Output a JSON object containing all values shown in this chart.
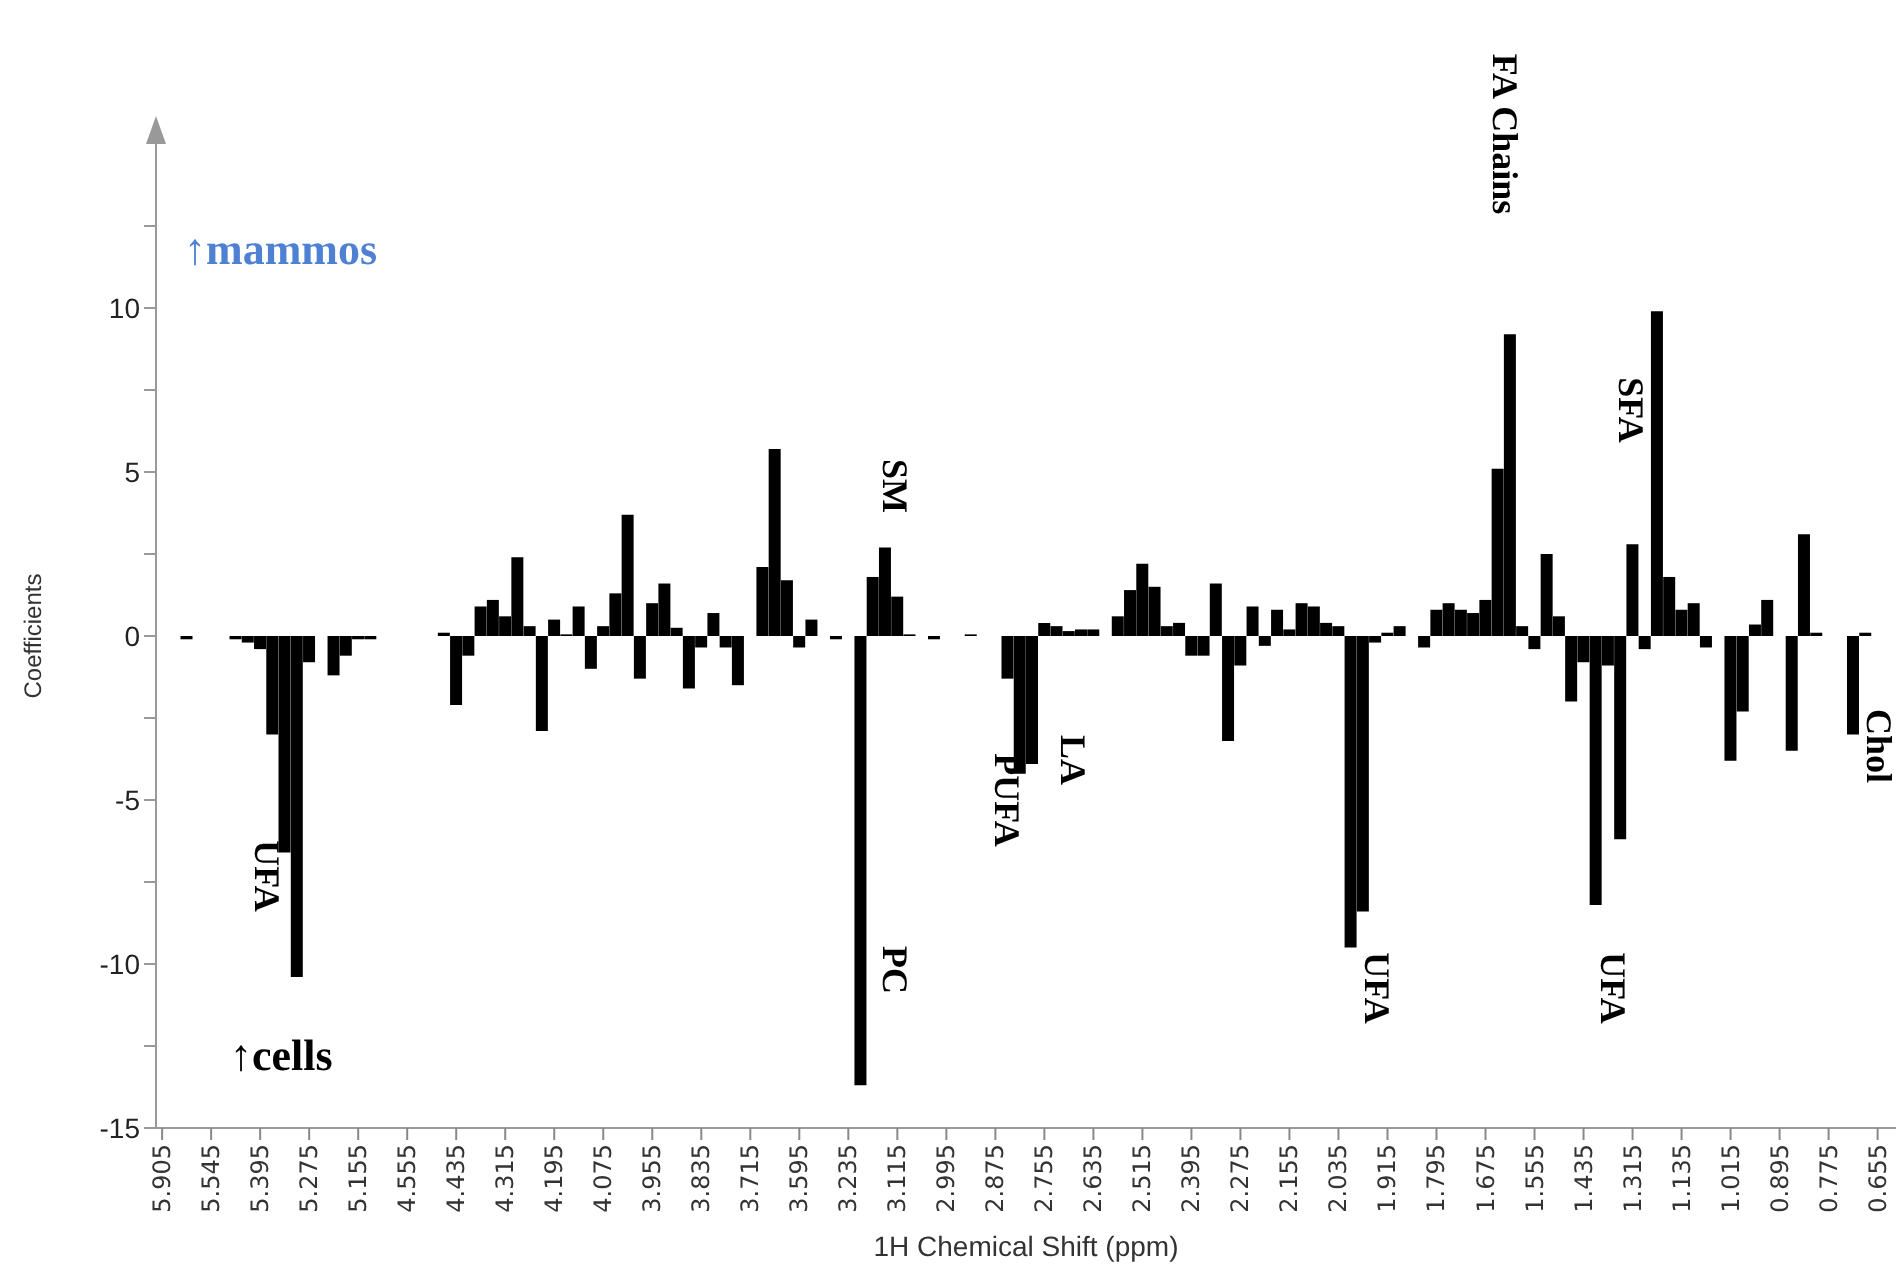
{
  "chart_data": {
    "type": "bar",
    "xlabel": "1H Chemical Shift (ppm)",
    "ylabel": "Coefficients",
    "color": "#000000",
    "categories": [
      "5.905",
      null,
      null,
      null,
      "5.545",
      null,
      null,
      null,
      "5.395",
      null,
      null,
      null,
      "5.275",
      null,
      null,
      null,
      "5.155",
      null,
      null,
      null,
      "4.555",
      null,
      null,
      null,
      "4.435",
      null,
      null,
      null,
      "4.315",
      null,
      null,
      null,
      "4.195",
      null,
      null,
      null,
      "4.075",
      null,
      null,
      null,
      "3.955",
      null,
      null,
      null,
      "3.835",
      null,
      null,
      null,
      "3.715",
      null,
      null,
      null,
      "3.595",
      null,
      null,
      null,
      "3.235",
      null,
      null,
      null,
      "3.115",
      null,
      null,
      null,
      "2.995",
      null,
      null,
      null,
      "2.875",
      null,
      null,
      null,
      "2.755",
      null,
      null,
      null,
      "2.635",
      null,
      null,
      null,
      "2.515",
      null,
      null,
      null,
      "2.395",
      null,
      null,
      null,
      "2.275",
      null,
      null,
      null,
      "2.155",
      null,
      null,
      null,
      "2.035",
      null,
      null,
      null,
      "1.915",
      null,
      null,
      null,
      "1.795",
      null,
      null,
      null,
      "1.675",
      null,
      null,
      null,
      "1.555",
      null,
      null,
      null,
      "1.435",
      null,
      null,
      null,
      "1.315",
      null,
      null,
      null,
      "1.135",
      null,
      null,
      null,
      "1.015",
      null,
      null,
      null,
      "0.895",
      null,
      null,
      null,
      "0.775",
      null,
      null,
      null,
      "0.655",
      null
    ],
    "values": [
      0,
      0,
      -0.1,
      0,
      0,
      0,
      -0.1,
      -0.2,
      -0.4,
      -3.0,
      -6.6,
      -10.4,
      -0.8,
      0,
      -1.2,
      -0.6,
      -0.1,
      -0.1,
      0,
      0,
      0,
      0,
      0,
      0.1,
      -2.1,
      -0.6,
      0.9,
      1.1,
      0.6,
      2.4,
      0.3,
      -2.9,
      0.5,
      0.05,
      0.9,
      -1.0,
      0.3,
      1.3,
      3.7,
      -1.3,
      1.0,
      1.6,
      0.25,
      -1.6,
      -0.35,
      0.7,
      -0.35,
      -1.5,
      0,
      2.1,
      5.7,
      1.7,
      -0.35,
      0.5,
      0,
      -0.1,
      0,
      -13.7,
      1.8,
      2.7,
      1.2,
      0.05,
      0,
      -0.1,
      0,
      0,
      0.05,
      0,
      0,
      -1.3,
      -4.2,
      -3.9,
      0.4,
      0.3,
      0.15,
      0.2,
      0.2,
      0,
      0.6,
      1.4,
      2.2,
      1.5,
      0.3,
      0.4,
      -0.6,
      -0.6,
      1.6,
      -3.2,
      -0.9,
      0.9,
      -0.3,
      0.8,
      0.2,
      1.0,
      0.9,
      0.4,
      0.3,
      -9.5,
      -8.4,
      -0.2,
      0.1,
      0.3,
      0,
      -0.35,
      0.8,
      1.0,
      0.8,
      0.7,
      1.1,
      5.1,
      9.2,
      0.3,
      -0.4,
      2.5,
      0.6,
      -2.0,
      -0.8,
      -8.2,
      -0.9,
      -6.2,
      2.8,
      -0.4,
      9.9,
      1.8,
      0.8,
      1.0,
      -0.35,
      0,
      -3.8,
      -2.3,
      0.35,
      1.1,
      0,
      -3.5,
      3.1,
      0.1,
      0,
      0,
      -3.0,
      0.1,
      0,
      0
    ],
    "ylim": [
      -15,
      15
    ],
    "yticks": [
      -15,
      {
        "value": -12.5,
        "label": null
      },
      -10,
      {
        "value": -7.5,
        "label": null
      },
      -5,
      {
        "value": -2.5,
        "label": null
      },
      0,
      {
        "value": 2.5,
        "label": null
      },
      5,
      {
        "value": 7.5,
        "label": null
      },
      10,
      {
        "value": 12.5,
        "label": null
      }
    ],
    "annotations": [
      "↑mammos",
      "↑cells",
      "UFA",
      "SM",
      "PC",
      "PUFA",
      "LA",
      "UFA",
      "FA Chains",
      "SFA",
      "UFA",
      "Chol"
    ]
  }
}
